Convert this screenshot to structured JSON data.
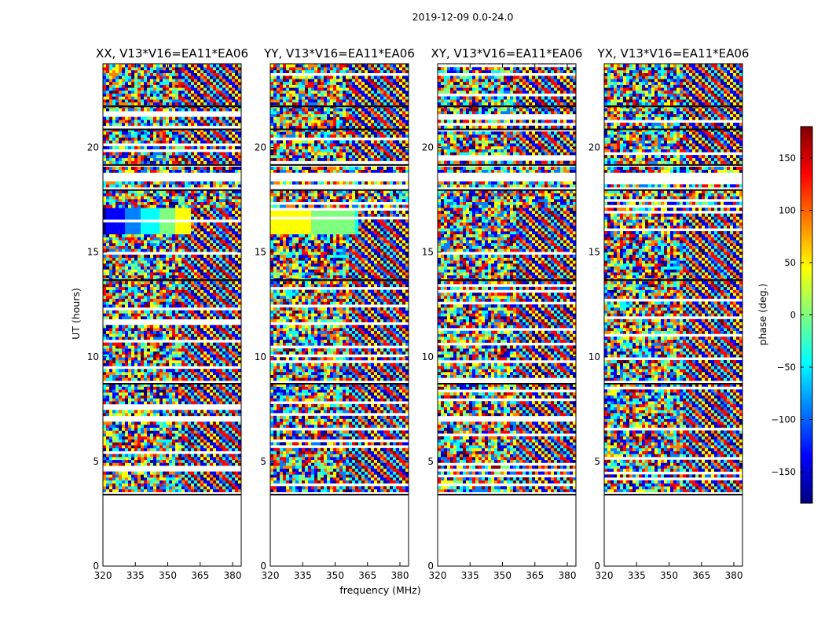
{
  "chart_data": {
    "type": "heatmap",
    "suptitle": "2019-12-09 0.0-24.0",
    "xlabel": "frequency (MHz)",
    "ylabel": "UT (hours)",
    "xlim": [
      320,
      384
    ],
    "ylim": [
      0,
      24
    ],
    "xticks": [
      320,
      335,
      350,
      365,
      380
    ],
    "yticks": [
      0,
      5,
      10,
      15,
      20
    ],
    "panels": [
      {
        "title": "XX, V13*V16=EA11*EA06",
        "pol": "XX"
      },
      {
        "title": "YY, V13*V16=EA11*EA06",
        "pol": "YY"
      },
      {
        "title": "XY, V13*V16=EA11*EA06",
        "pol": "XY"
      },
      {
        "title": "YX, V13*V16=EA11*EA06",
        "pol": "YX"
      }
    ],
    "data_time_range_hours": [
      3.4,
      24.0
    ],
    "flagged_gaps_hours": [
      [
        17.9,
        18.1
      ],
      [
        18.3,
        18.8
      ],
      [
        19.0,
        19.2
      ],
      [
        8.7,
        8.8
      ],
      [
        3.4,
        3.5
      ]
    ],
    "colorbar": {
      "label": "phase (deg.)",
      "range": [
        -180,
        180
      ],
      "ticks": [
        -150,
        -100,
        -50,
        0,
        50,
        100,
        150
      ],
      "tick_labels": [
        "−150",
        "−100",
        "−50",
        "0",
        "50",
        "100",
        "150"
      ],
      "colormap": "jet",
      "colors": [
        "#00007f",
        "#0000ff",
        "#007fff",
        "#00ffff",
        "#7fff7f",
        "#ffff00",
        "#ff7f00",
        "#ff0000",
        "#7f0000"
      ]
    }
  }
}
